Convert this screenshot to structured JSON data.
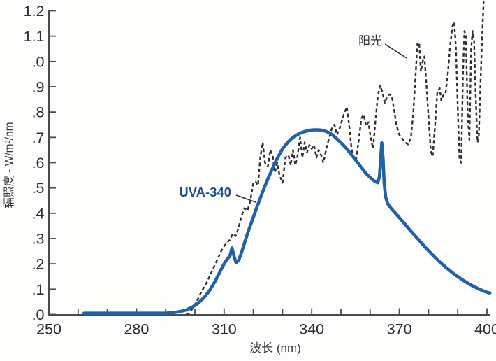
{
  "chart_data": {
    "type": "line",
    "title": "",
    "xlabel": "波长 (nm)",
    "ylabel": "辐照度 - W/m²/nm",
    "x_range": [
      250,
      400
    ],
    "y_range": [
      0,
      1.2
    ],
    "x_major_ticks": [
      250,
      280,
      310,
      340,
      370,
      400
    ],
    "x_minor_step": 10,
    "y_tick_step": 0.1,
    "y_tick_labels": [
      ".0",
      ".1",
      ".2",
      ".3",
      ".4",
      ".5",
      ".6",
      ".7",
      ".8",
      ".9",
      ".0",
      "1.1",
      "1.2"
    ],
    "grid": false,
    "legend_position": "inline-annotations",
    "colors": {
      "axis": "#4a4a4a",
      "tick_text": "#2e2e2e",
      "uva340_line": "#2261a5",
      "uva340_label": "#1b4e8f",
      "sunlight_line": "#2f2f2f",
      "sunlight_label": "#333333"
    },
    "annotations": {
      "sunlight": {
        "text": "阳光",
        "color": "#333333"
      },
      "uva340": {
        "text": "UVA-340",
        "color": "#1b4e8f"
      }
    },
    "series": [
      {
        "name": "阳光",
        "style": "dashed",
        "color": "#2f2f2f",
        "width": 2.4,
        "points": [
          [
            297,
            0.0
          ],
          [
            298,
            0.005
          ],
          [
            299,
            0.02
          ],
          [
            300,
            0.04
          ],
          [
            301,
            0.06
          ],
          [
            302,
            0.085
          ],
          [
            303,
            0.105
          ],
          [
            304,
            0.125
          ],
          [
            305,
            0.15
          ],
          [
            306,
            0.175
          ],
          [
            307,
            0.2
          ],
          [
            308,
            0.225
          ],
          [
            309,
            0.25
          ],
          [
            310,
            0.27
          ],
          [
            311,
            0.285
          ],
          [
            312,
            0.295
          ],
          [
            313,
            0.32
          ],
          [
            314,
            0.31
          ],
          [
            315,
            0.345
          ],
          [
            316,
            0.39
          ],
          [
            317,
            0.42
          ],
          [
            318,
            0.41
          ],
          [
            319,
            0.45
          ],
          [
            320,
            0.52
          ],
          [
            320.8,
            0.525
          ],
          [
            321.6,
            0.51
          ],
          [
            322.4,
            0.62
          ],
          [
            323.2,
            0.68
          ],
          [
            324,
            0.6
          ],
          [
            325,
            0.585
          ],
          [
            325.8,
            0.65
          ],
          [
            326.6,
            0.63
          ],
          [
            327.4,
            0.56
          ],
          [
            328.2,
            0.6
          ],
          [
            329,
            0.55
          ],
          [
            330,
            0.52
          ],
          [
            331,
            0.62
          ],
          [
            332,
            0.63
          ],
          [
            332.8,
            0.59
          ],
          [
            333.6,
            0.65
          ],
          [
            334.4,
            0.59
          ],
          [
            335.2,
            0.63
          ],
          [
            336,
            0.7
          ],
          [
            336.8,
            0.62
          ],
          [
            337.6,
            0.68
          ],
          [
            338.4,
            0.64
          ],
          [
            339.2,
            0.67
          ],
          [
            340,
            0.655
          ],
          [
            340.8,
            0.67
          ],
          [
            341.6,
            0.62
          ],
          [
            342.4,
            0.65
          ],
          [
            343.2,
            0.63
          ],
          [
            344,
            0.6
          ],
          [
            345,
            0.655
          ],
          [
            346,
            0.7
          ],
          [
            347,
            0.74
          ],
          [
            347.8,
            0.75
          ],
          [
            348.6,
            0.71
          ],
          [
            349.4,
            0.73
          ],
          [
            350.2,
            0.76
          ],
          [
            351,
            0.79
          ],
          [
            352,
            0.82
          ],
          [
            352.8,
            0.75
          ],
          [
            353.6,
            0.66
          ],
          [
            354.4,
            0.615
          ],
          [
            355.2,
            0.61
          ],
          [
            356,
            0.68
          ],
          [
            357,
            0.775
          ],
          [
            357.8,
            0.79
          ],
          [
            358.6,
            0.745
          ],
          [
            359.4,
            0.76
          ],
          [
            360.2,
            0.7
          ],
          [
            361,
            0.655
          ],
          [
            361.8,
            0.76
          ],
          [
            362.6,
            0.86
          ],
          [
            363.4,
            0.905
          ],
          [
            364.2,
            0.88
          ],
          [
            365,
            0.835
          ],
          [
            365.8,
            0.86
          ],
          [
            366.6,
            0.87
          ],
          [
            367.4,
            0.865
          ],
          [
            368.2,
            0.81
          ],
          [
            369,
            0.75
          ],
          [
            370,
            0.71
          ],
          [
            371,
            0.695
          ],
          [
            372,
            0.68
          ],
          [
            373,
            0.672
          ],
          [
            374,
            0.7
          ],
          [
            374.8,
            0.8
          ],
          [
            375.6,
            0.95
          ],
          [
            376.2,
            1.07
          ],
          [
            376.8,
            1.075
          ],
          [
            377.4,
            0.96
          ],
          [
            378,
            1.0
          ],
          [
            378.6,
            1.02
          ],
          [
            379.2,
            0.92
          ],
          [
            380,
            0.78
          ],
          [
            380.8,
            0.645
          ],
          [
            381.4,
            0.625
          ],
          [
            382.2,
            0.74
          ],
          [
            383,
            0.875
          ],
          [
            383.8,
            0.895
          ],
          [
            384.4,
            0.845
          ],
          [
            385,
            0.865
          ],
          [
            385.8,
            0.87
          ],
          [
            386.6,
            0.95
          ],
          [
            387.4,
            1.06
          ],
          [
            388.2,
            1.14
          ],
          [
            388.8,
            1.155
          ],
          [
            389.4,
            1.05
          ],
          [
            390,
            0.82
          ],
          [
            390.6,
            0.615
          ],
          [
            391.2,
            0.6
          ],
          [
            391.8,
            0.95
          ],
          [
            392.3,
            1.12
          ],
          [
            392.8,
            1.1
          ],
          [
            393.4,
            0.8
          ],
          [
            394,
            0.69
          ],
          [
            394.6,
            1.05
          ],
          [
            395.1,
            1.12
          ],
          [
            395.6,
            1.08
          ],
          [
            396,
            0.92
          ],
          [
            396.4,
            0.78
          ],
          [
            396.8,
            0.68
          ],
          [
            397.2,
            0.7
          ],
          [
            397.7,
            0.88
          ],
          [
            398.2,
            1.05
          ],
          [
            398.8,
            1.22
          ],
          [
            399.4,
            1.38
          ]
        ]
      },
      {
        "name": "UVA-340",
        "style": "solid",
        "color": "#2261a5",
        "width": 4.6,
        "points": [
          [
            262,
            0.005
          ],
          [
            290,
            0.005
          ],
          [
            293,
            0.008
          ],
          [
            295,
            0.012
          ],
          [
            297,
            0.018
          ],
          [
            299,
            0.028
          ],
          [
            301,
            0.044
          ],
          [
            303,
            0.065
          ],
          [
            305,
            0.094
          ],
          [
            307,
            0.133
          ],
          [
            309,
            0.178
          ],
          [
            310,
            0.2
          ],
          [
            311,
            0.218
          ],
          [
            312,
            0.232
          ],
          [
            312.7,
            0.263
          ],
          [
            313.4,
            0.23
          ],
          [
            314.1,
            0.205
          ],
          [
            315,
            0.214
          ],
          [
            316,
            0.246
          ],
          [
            317,
            0.283
          ],
          [
            318,
            0.319
          ],
          [
            319,
            0.352
          ],
          [
            320,
            0.384
          ],
          [
            321,
            0.417
          ],
          [
            322,
            0.448
          ],
          [
            323,
            0.478
          ],
          [
            324,
            0.508
          ],
          [
            325,
            0.536
          ],
          [
            326,
            0.562
          ],
          [
            327,
            0.589
          ],
          [
            328,
            0.613
          ],
          [
            329,
            0.634
          ],
          [
            330,
            0.654
          ],
          [
            331,
            0.669
          ],
          [
            332,
            0.683
          ],
          [
            333,
            0.694
          ],
          [
            334,
            0.703
          ],
          [
            335,
            0.71
          ],
          [
            336,
            0.716
          ],
          [
            337,
            0.721
          ],
          [
            338,
            0.724
          ],
          [
            339,
            0.727
          ],
          [
            340,
            0.729
          ],
          [
            341,
            0.73
          ],
          [
            342,
            0.73
          ],
          [
            343,
            0.729
          ],
          [
            344,
            0.727
          ],
          [
            345,
            0.723
          ],
          [
            346,
            0.718
          ],
          [
            347,
            0.71
          ],
          [
            348,
            0.701
          ],
          [
            349,
            0.69
          ],
          [
            350,
            0.679
          ],
          [
            351,
            0.667
          ],
          [
            352,
            0.654
          ],
          [
            353,
            0.64
          ],
          [
            354,
            0.626
          ],
          [
            355,
            0.611
          ],
          [
            356,
            0.596
          ],
          [
            357,
            0.581
          ],
          [
            358,
            0.566
          ],
          [
            359,
            0.553
          ],
          [
            360,
            0.542
          ],
          [
            361,
            0.531
          ],
          [
            362,
            0.524
          ],
          [
            362.6,
            0.521
          ],
          [
            363.2,
            0.545
          ],
          [
            363.7,
            0.63
          ],
          [
            364,
            0.678
          ],
          [
            364.4,
            0.62
          ],
          [
            364.8,
            0.52
          ],
          [
            365.3,
            0.465
          ],
          [
            366,
            0.438
          ],
          [
            367,
            0.422
          ],
          [
            368,
            0.409
          ],
          [
            369,
            0.396
          ],
          [
            370,
            0.383
          ],
          [
            371,
            0.369
          ],
          [
            372,
            0.356
          ],
          [
            373,
            0.342
          ],
          [
            374,
            0.329
          ],
          [
            375,
            0.316
          ],
          [
            376,
            0.303
          ],
          [
            377,
            0.29
          ],
          [
            378,
            0.277
          ],
          [
            379,
            0.264
          ],
          [
            380,
            0.252
          ],
          [
            381,
            0.24
          ],
          [
            382,
            0.228
          ],
          [
            383,
            0.217
          ],
          [
            384,
            0.206
          ],
          [
            385,
            0.196
          ],
          [
            386,
            0.186
          ],
          [
            387,
            0.176
          ],
          [
            388,
            0.167
          ],
          [
            389,
            0.158
          ],
          [
            390,
            0.15
          ],
          [
            391,
            0.142
          ],
          [
            392,
            0.134
          ],
          [
            393,
            0.127
          ],
          [
            394,
            0.12
          ],
          [
            395,
            0.114
          ],
          [
            396,
            0.108
          ],
          [
            397,
            0.102
          ],
          [
            398,
            0.097
          ],
          [
            399,
            0.092
          ],
          [
            400,
            0.088
          ],
          [
            401,
            0.085
          ]
        ]
      }
    ]
  }
}
